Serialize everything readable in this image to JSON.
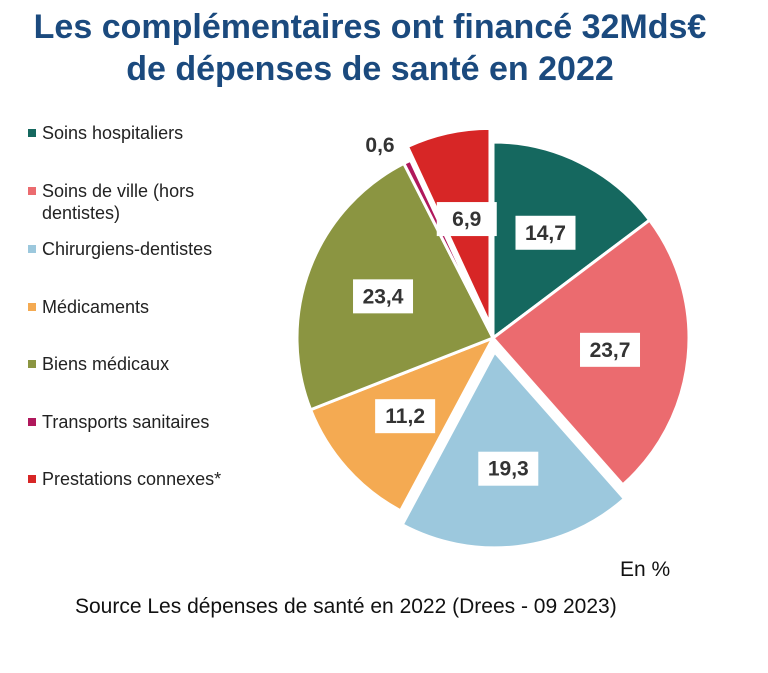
{
  "title_line1": "Les complémentaires ont financé 32Mds€",
  "title_line2": "de dépenses de santé en 2022",
  "chart_data": {
    "type": "pie",
    "title": "Les complémentaires ont financé 32Mds€ de dépenses de santé en 2022",
    "unit": "En %",
    "legend_position": "left",
    "slices": [
      {
        "label": "Soins hospitaliers",
        "value": 14.7,
        "display": "14,7",
        "color": "#15685f",
        "exploded": false
      },
      {
        "label": "Soins de ville (hors dentistes)",
        "value": 23.7,
        "display": "23,7",
        "color": "#eb6b6f",
        "exploded": false
      },
      {
        "label": "Chirurgiens-dentistes",
        "value": 19.3,
        "display": "19,3",
        "color": "#9cc8dd",
        "exploded": true
      },
      {
        "label": "Médicaments",
        "value": 11.2,
        "display": "11,2",
        "color": "#f4aa52",
        "exploded": false
      },
      {
        "label": "Biens médicaux",
        "value": 23.4,
        "display": "23,4",
        "color": "#8b9541",
        "exploded": false
      },
      {
        "label": "Transports sanitaires",
        "value": 0.6,
        "display": "0,6",
        "color": "#b0185c",
        "exploded": false
      },
      {
        "label": "Prestations connexes*",
        "value": 6.9,
        "display": "6,9",
        "color": "#d72626",
        "exploded": true
      }
    ]
  },
  "unit_label": "En %",
  "source": "Source Les dépenses de santé en 2022 (Drees - 09 2023)"
}
